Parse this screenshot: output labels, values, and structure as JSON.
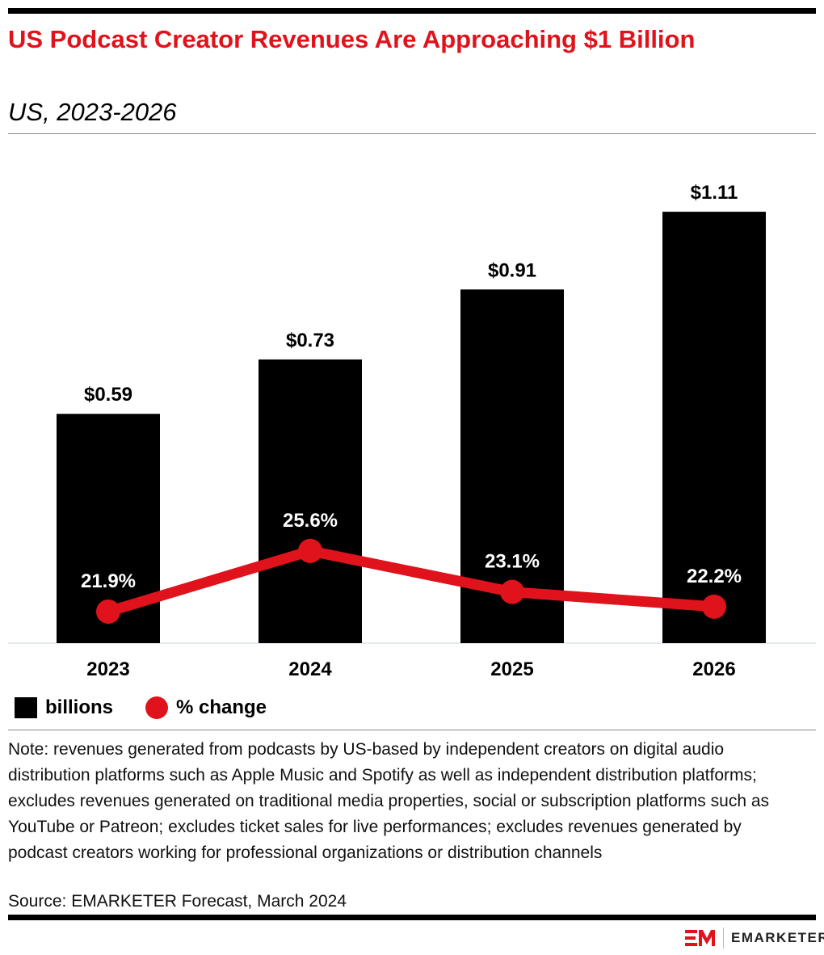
{
  "header": {
    "title": "US Podcast Creator Revenues Are Approaching $1 Billion",
    "subtitle": "US, 2023-2026"
  },
  "chart_data": {
    "type": "bar",
    "categories": [
      "2023",
      "2024",
      "2025",
      "2026"
    ],
    "series": [
      {
        "name": "billions",
        "type": "bar",
        "values": [
          0.59,
          0.73,
          0.91,
          1.11
        ],
        "labels": [
          "$0.59",
          "$0.73",
          "$0.91",
          "$1.11"
        ],
        "color": "#000000"
      },
      {
        "name": "% change",
        "type": "line",
        "values": [
          21.9,
          25.6,
          23.1,
          22.2
        ],
        "labels": [
          "21.9%",
          "25.6%",
          "23.1%",
          "22.2%"
        ],
        "color": "#e0121b"
      }
    ],
    "legend": "bottom-left",
    "grid": false
  },
  "legend": {
    "bar_label": "billions",
    "line_label": "% change"
  },
  "footer": {
    "note": "Note: revenues generated from podcasts by US-based by independent creators on digital audio distribution platforms such as Apple Music and Spotify as well as independent distribution platforms; excludes revenues generated on traditional media properties, social or subscription platforms such as YouTube or Patreon; excludes ticket sales for live performances; excludes revenues generated by podcast creators working for professional organizations or distribution channels",
    "source": "Source: EMARKETER Forecast, March 2024",
    "brand": "EMARKETER"
  }
}
